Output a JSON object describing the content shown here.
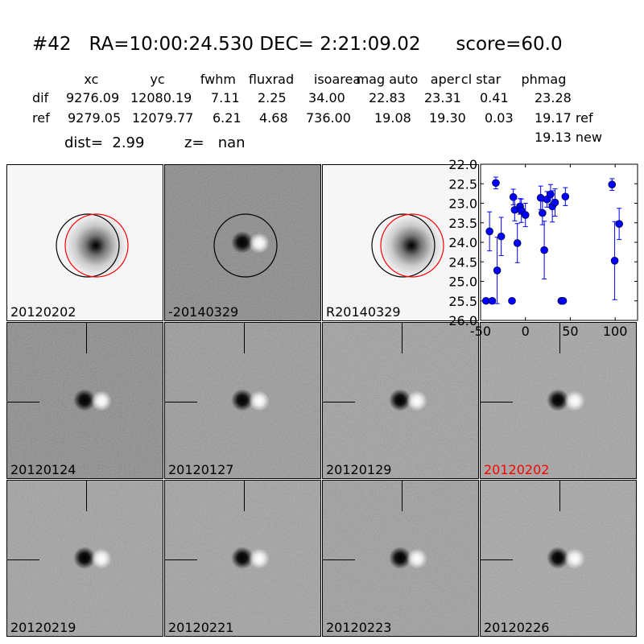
{
  "header": {
    "title": "#42   RA=10:00:24.530 DEC= 2:21:09.02      score=60.0",
    "columns": [
      "xc",
      "yc",
      "fwhm",
      "fluxrad",
      "isoarea",
      "mag auto",
      "aper",
      "cl star",
      "phmag"
    ],
    "rows": [
      {
        "label": "dif",
        "values": [
          "9276.09",
          "12080.19",
          "7.11",
          "2.25",
          "34.00",
          "22.83",
          "23.31",
          "0.41",
          "23.28"
        ]
      },
      {
        "label": "ref",
        "values": [
          "9279.05",
          "12079.77",
          "6.21",
          "4.68",
          "736.00",
          "19.08",
          "19.30",
          "0.03",
          "19.17 ref"
        ]
      }
    ],
    "phmag_new": "19.13 new",
    "dist": "dist=  2.99",
    "z": "z=   nan"
  },
  "panels": [
    {
      "label": "20120202",
      "kind": "ref",
      "bg": "#f6f6f6",
      "circles": [
        "#000000",
        "#ff0000"
      ]
    },
    {
      "label": "-20140329",
      "kind": "diff",
      "bg": "#8a8a8a",
      "circles": [
        "#000000"
      ]
    },
    {
      "label": "R20140329",
      "kind": "ref",
      "bg": "#f6f6f6",
      "circles": [
        "#000000",
        "#ff0000"
      ]
    },
    {
      "label": "20120124",
      "kind": "cut",
      "bg": "#8c8c8c"
    },
    {
      "label": "20120127",
      "kind": "cut",
      "bg": "#9a9a9a"
    },
    {
      "label": "20120129",
      "kind": "cut",
      "bg": "#a0a0a0"
    },
    {
      "label": "20120202",
      "kind": "cut",
      "bg": "#a4a4a4",
      "label_color": "#ff0000"
    },
    {
      "label": "20120219",
      "kind": "cut",
      "bg": "#a2a2a2"
    },
    {
      "label": "20120221",
      "kind": "cut",
      "bg": "#a2a2a2"
    },
    {
      "label": "20120223",
      "kind": "cut",
      "bg": "#9e9e9e"
    },
    {
      "label": "20120226",
      "kind": "cut",
      "bg": "#a6a6a6"
    }
  ],
  "chart_data": {
    "type": "scatter",
    "xlim": [
      -50,
      125
    ],
    "ylim": [
      26.0,
      22.0
    ],
    "y_inverted": true,
    "xticks": [
      "-50",
      "0",
      "50",
      "100"
    ],
    "yticks": [
      "22.0",
      "22.5",
      "23.0",
      "23.5",
      "24.0",
      "24.5",
      "25.0",
      "25.5",
      "26.0"
    ],
    "color": "#0000ff",
    "points": [
      {
        "x": -44,
        "y": 25.5,
        "err": 0.05
      },
      {
        "x": -40,
        "y": 23.72,
        "err": 0.5
      },
      {
        "x": -37,
        "y": 25.5,
        "err": 0.05
      },
      {
        "x": -33,
        "y": 22.48,
        "err": 0.15
      },
      {
        "x": -31.5,
        "y": 24.72,
        "err": 0.85
      },
      {
        "x": -27,
        "y": 23.85,
        "err": 0.49
      },
      {
        "x": -15,
        "y": 25.5,
        "err": 0.05
      },
      {
        "x": -13.5,
        "y": 22.84,
        "err": 0.2
      },
      {
        "x": -12,
        "y": 23.17,
        "err": 0.28
      },
      {
        "x": -9,
        "y": 24.02,
        "err": 0.5
      },
      {
        "x": -6,
        "y": 23.08,
        "err": 0.2
      },
      {
        "x": -4.5,
        "y": 23.19,
        "err": 0.3
      },
      {
        "x": 0,
        "y": 23.3,
        "err": 0.3
      },
      {
        "x": 17,
        "y": 22.86,
        "err": 0.3
      },
      {
        "x": 19,
        "y": 23.25,
        "err": 0.3
      },
      {
        "x": 21,
        "y": 24.2,
        "err": 0.74
      },
      {
        "x": 24,
        "y": 22.9,
        "err": 0.2
      },
      {
        "x": 28,
        "y": 22.77,
        "err": 0.25
      },
      {
        "x": 30,
        "y": 23.08,
        "err": 0.4
      },
      {
        "x": 33,
        "y": 22.98,
        "err": 0.35
      },
      {
        "x": 40,
        "y": 25.5,
        "err": 0.05
      },
      {
        "x": 42,
        "y": 25.5,
        "err": 0.05
      },
      {
        "x": 44.5,
        "y": 22.83,
        "err": 0.23
      },
      {
        "x": 96.5,
        "y": 22.52,
        "err": 0.15
      },
      {
        "x": 99.5,
        "y": 24.47,
        "err": 1.0
      },
      {
        "x": 104.5,
        "y": 23.53,
        "err": 0.4
      }
    ]
  }
}
